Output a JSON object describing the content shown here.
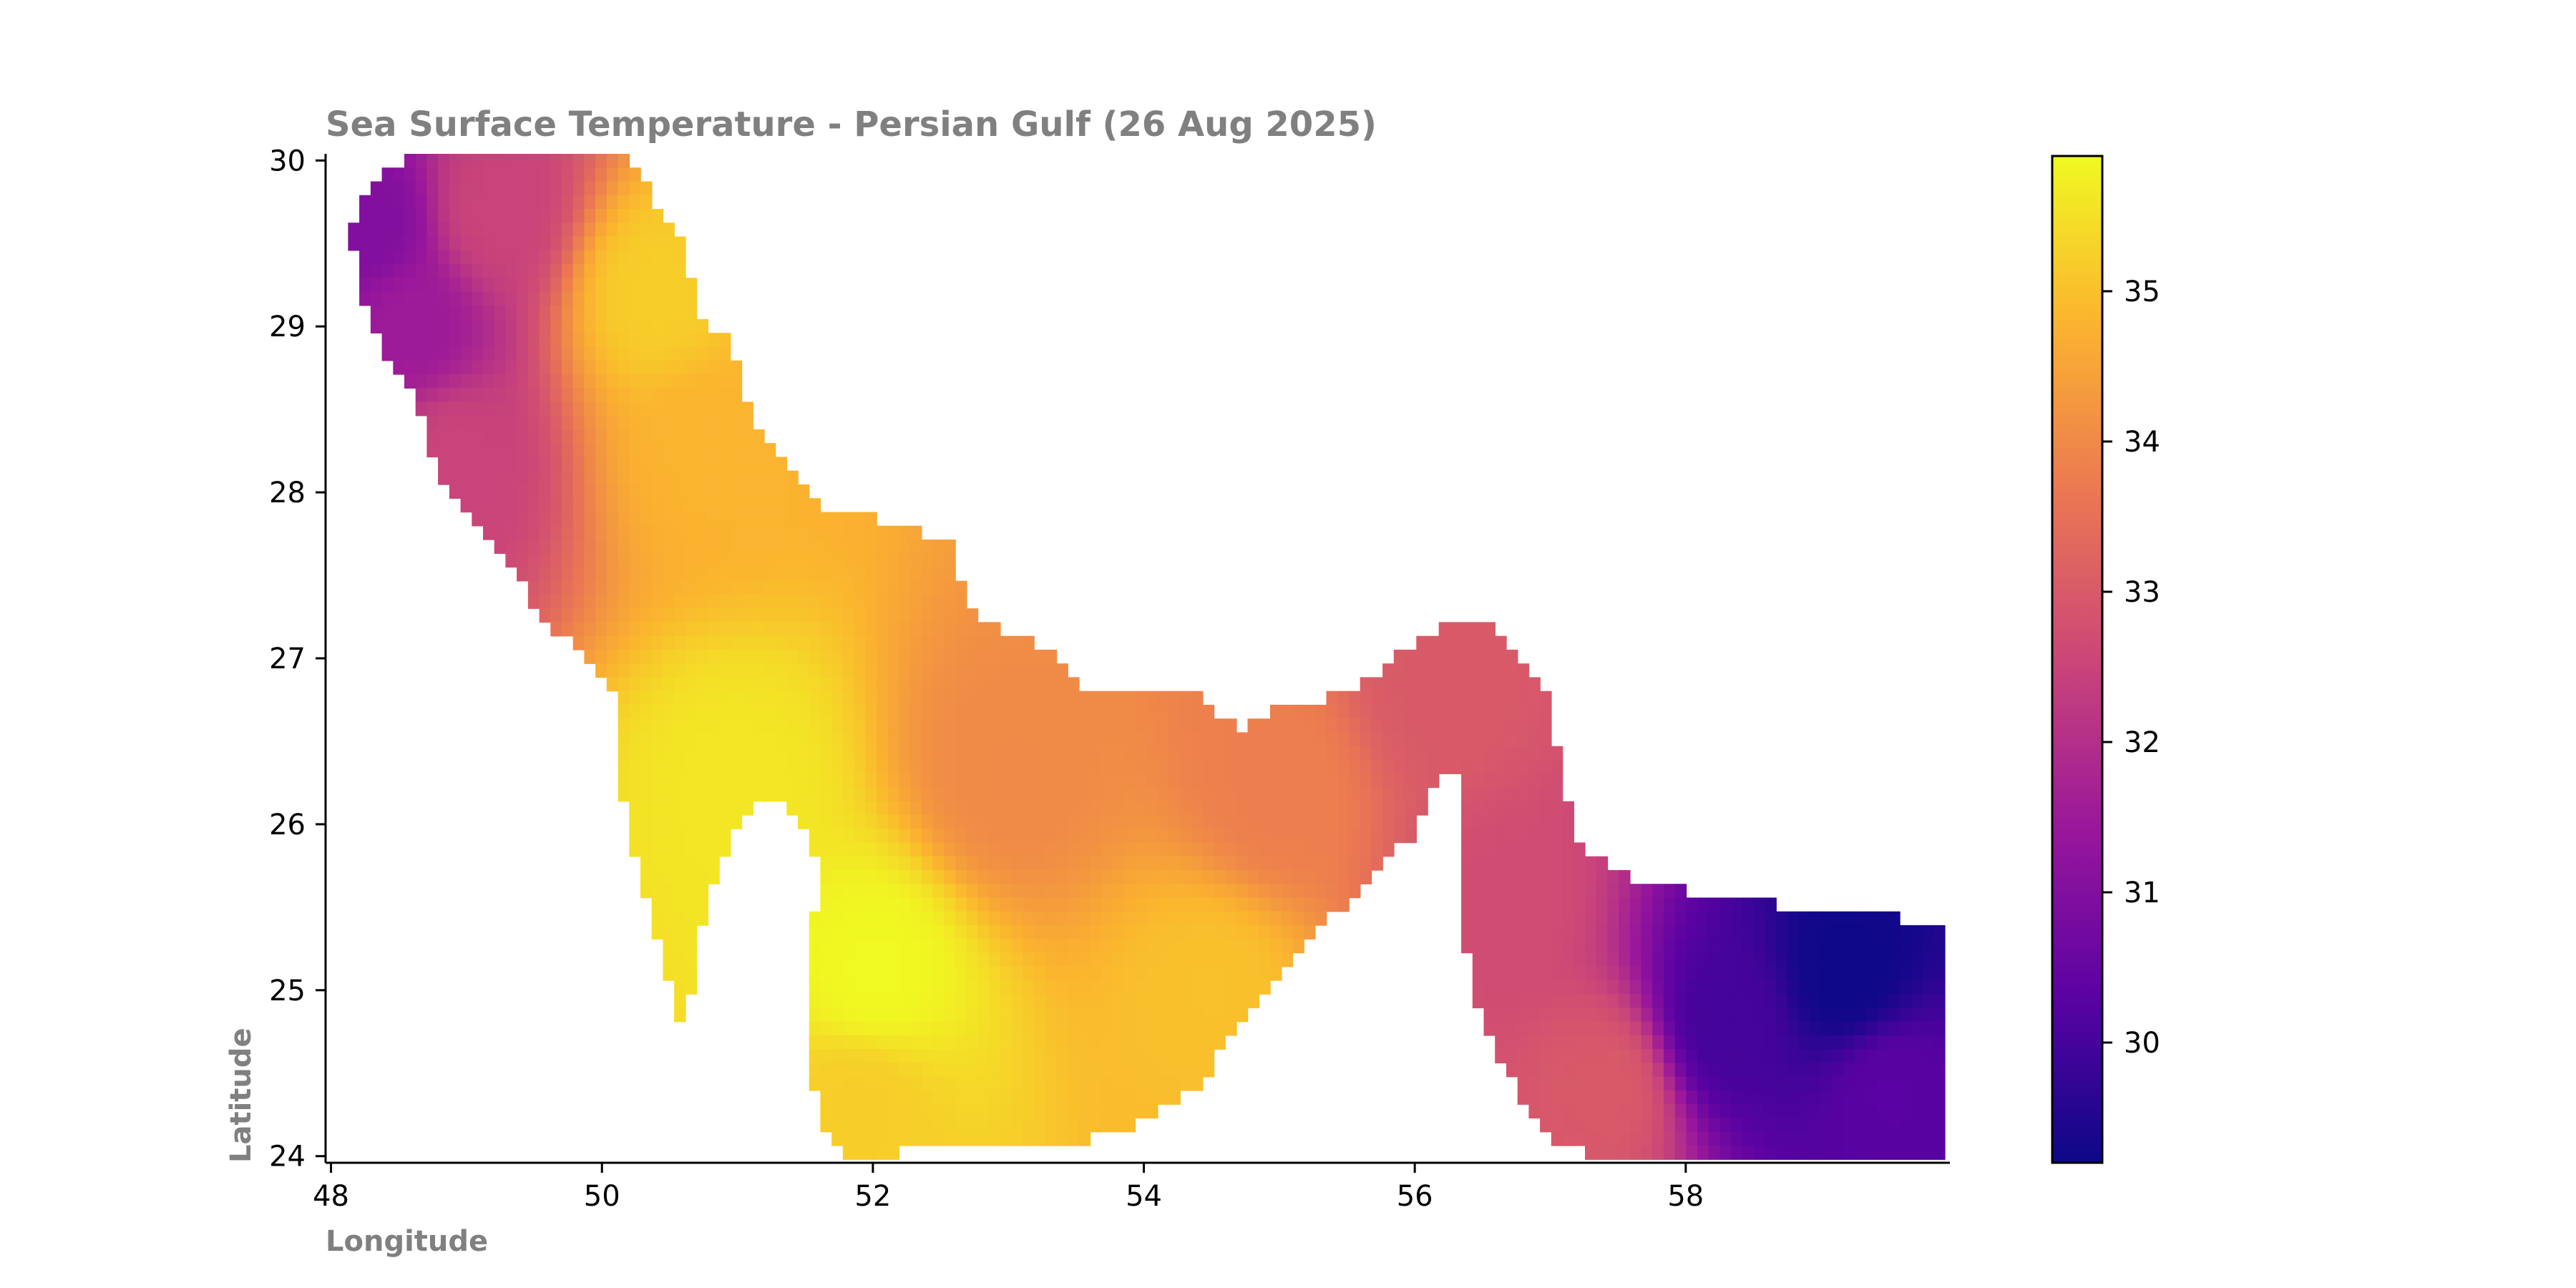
{
  "chart_data": {
    "type": "heatmap",
    "title": "Sea Surface Temperature - Persian Gulf (26 Aug 2025)",
    "xlabel": "Longitude",
    "ylabel": "Latitude",
    "xlim": [
      47.96,
      59.95
    ],
    "ylim": [
      23.96,
      30.04
    ],
    "x_ticks": [
      48,
      50,
      52,
      54,
      56,
      58
    ],
    "y_ticks": [
      24,
      25,
      26,
      27,
      28,
      29,
      30
    ],
    "colorbar": {
      "ticks": [
        30,
        31,
        32,
        33,
        34,
        35
      ],
      "range": [
        29.2,
        35.9
      ],
      "colormap": "plasma",
      "colors": [
        "#0d0887",
        "#5b02a3",
        "#9a179b",
        "#cb4678",
        "#eb7852",
        "#fbb32f",
        "#f0f921"
      ]
    },
    "field_features": [
      {
        "lon": 48.3,
        "lat": 29.6,
        "value": 31.0
      },
      {
        "lon": 48.6,
        "lat": 29.0,
        "value": 31.5
      },
      {
        "lon": 48.9,
        "lat": 28.2,
        "value": 32.5
      },
      {
        "lon": 49.2,
        "lat": 29.7,
        "value": 32.5
      },
      {
        "lon": 50.4,
        "lat": 29.2,
        "value": 35.2
      },
      {
        "lon": 50.8,
        "lat": 28.3,
        "value": 34.8
      },
      {
        "lon": 51.0,
        "lat": 26.2,
        "value": 35.6
      },
      {
        "lon": 52.0,
        "lat": 25.1,
        "value": 35.9
      },
      {
        "lon": 51.9,
        "lat": 24.3,
        "value": 35.2
      },
      {
        "lon": 53.0,
        "lat": 26.3,
        "value": 34.0
      },
      {
        "lon": 54.5,
        "lat": 25.0,
        "value": 35.0
      },
      {
        "lon": 55.0,
        "lat": 26.2,
        "value": 33.8
      },
      {
        "lon": 56.2,
        "lat": 26.8,
        "value": 33.0
      },
      {
        "lon": 56.6,
        "lat": 25.5,
        "value": 32.7
      },
      {
        "lon": 57.4,
        "lat": 24.4,
        "value": 33.0
      },
      {
        "lon": 58.3,
        "lat": 24.8,
        "value": 30.0
      },
      {
        "lon": 59.2,
        "lat": 25.1,
        "value": 29.2
      },
      {
        "lon": 59.5,
        "lat": 24.4,
        "value": 30.3
      }
    ]
  }
}
